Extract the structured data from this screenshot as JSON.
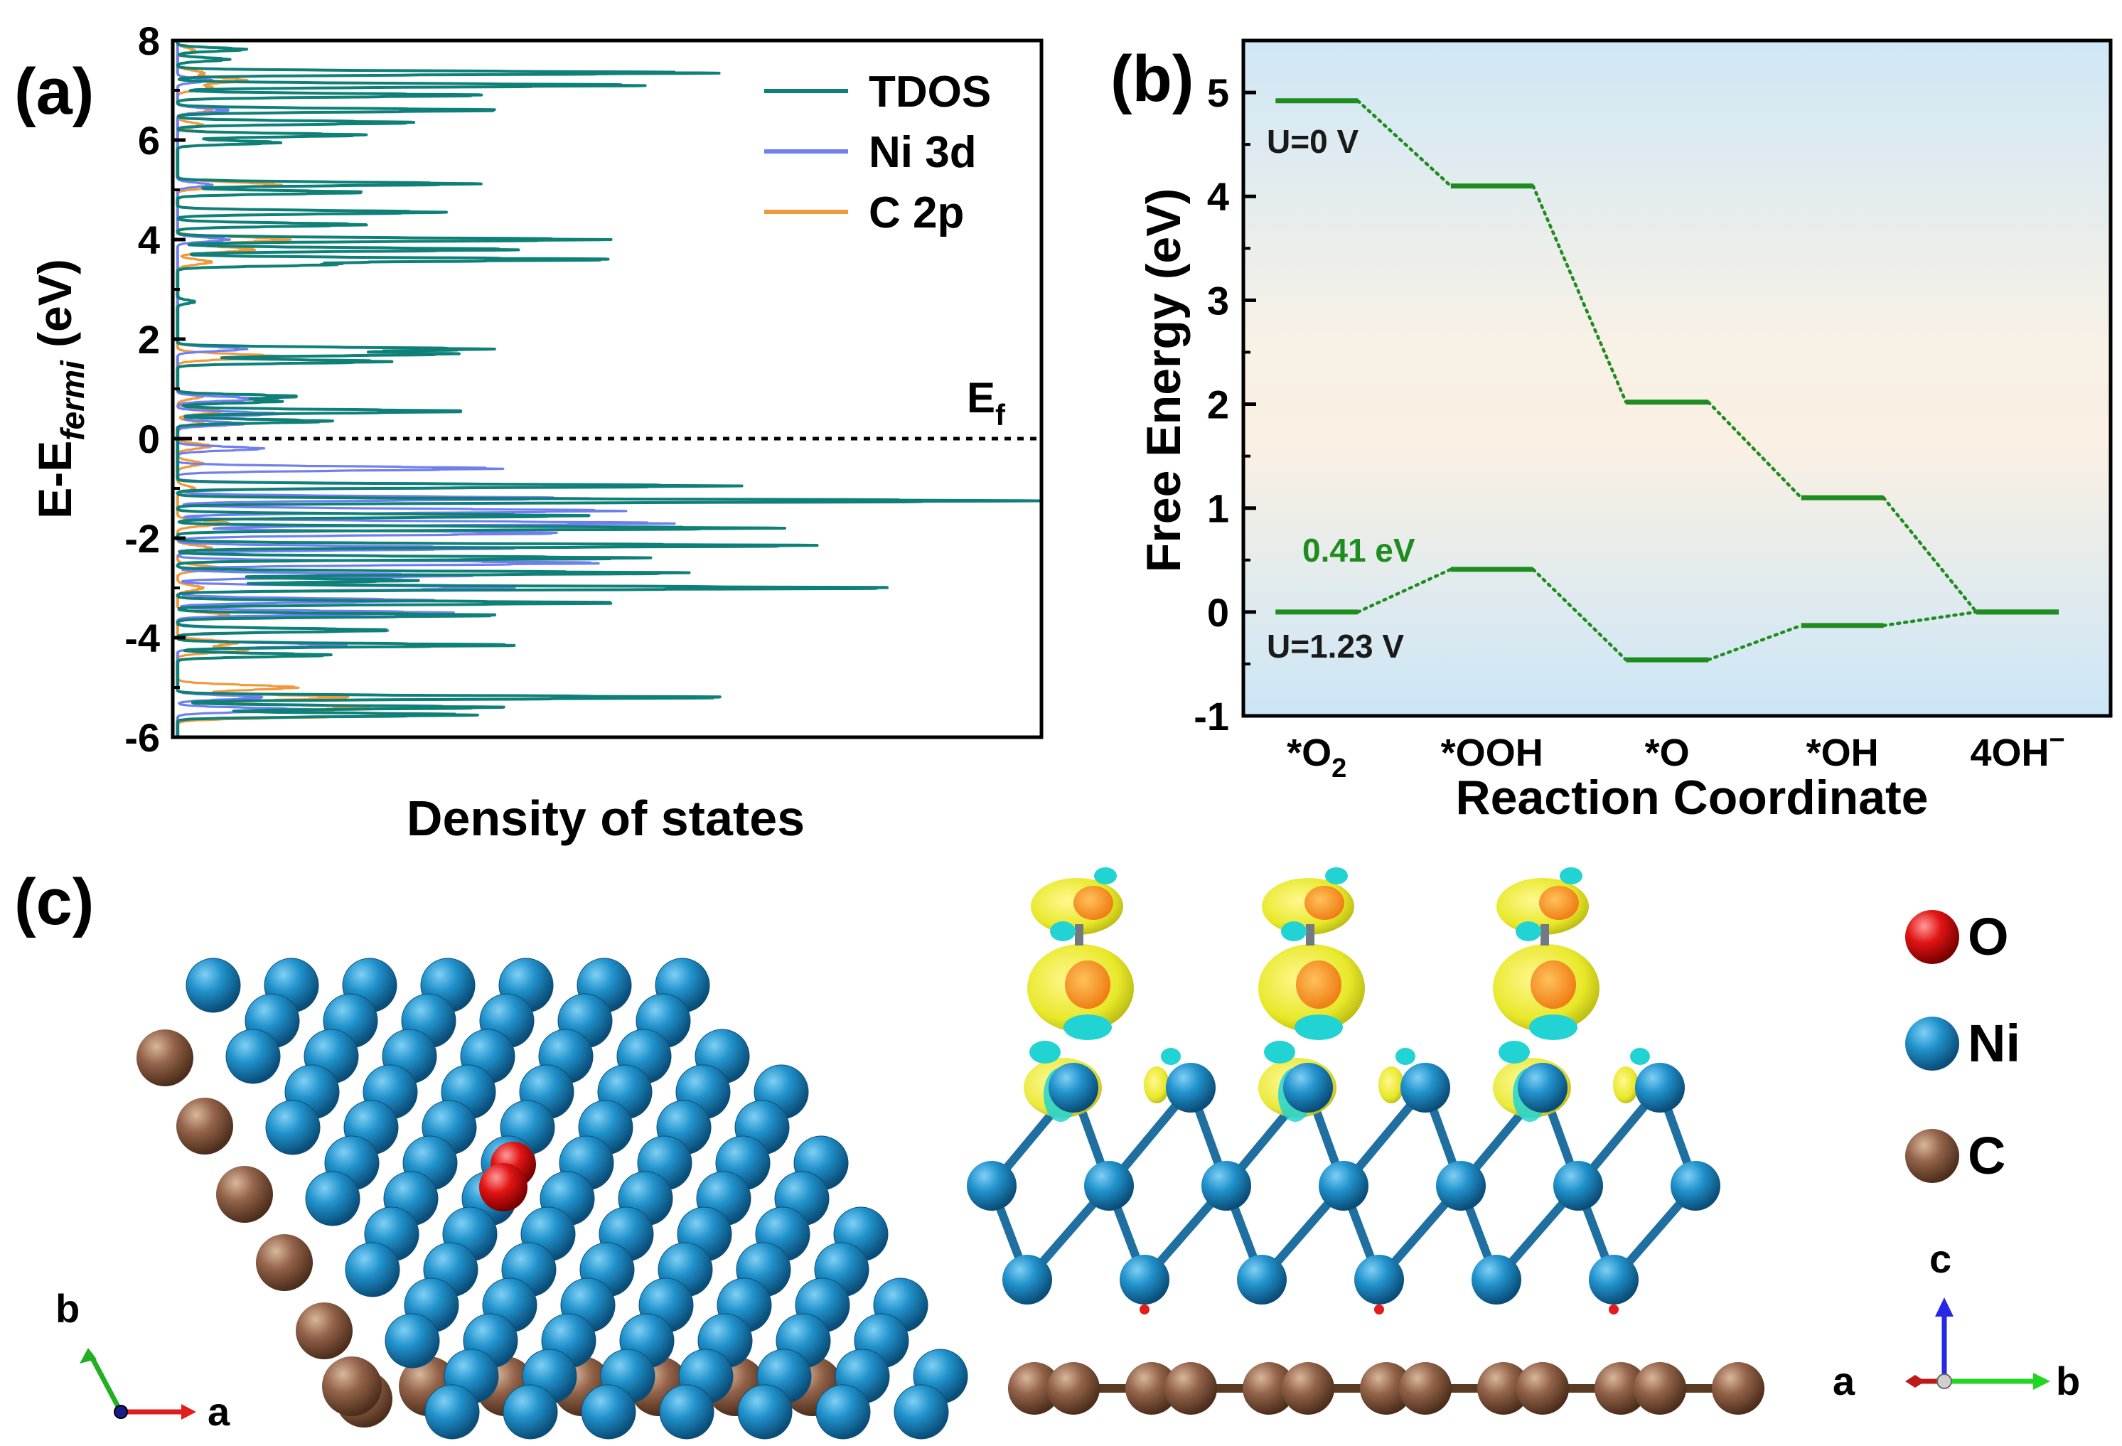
{
  "figure": {
    "panel_labels": [
      "(a)",
      "(b)",
      "(c)"
    ],
    "colors": {
      "tdos": "#0e8078",
      "ni3d": "#6f7ff0",
      "c2p": "#f2993a",
      "step": "#1e8c1e",
      "ni_atom": "#1f86c0",
      "c_atom": "#8a5a3c",
      "o_atom": "#e31b1b",
      "iso_yellow": "#eaea2a",
      "iso_cyan": "#22d3d3"
    }
  },
  "chart_data": [
    {
      "panel": "(a)",
      "type": "line",
      "title": "",
      "xlabel": "Density of states",
      "ylabel_main": "E-E",
      "ylabel_sub": "fermi",
      "ylabel_unit": " (eV)",
      "ylim": [
        -6,
        8
      ],
      "yticks": [
        "-6",
        "-4",
        "-2",
        "0",
        "2",
        "4",
        "6",
        "8"
      ],
      "yticks_values": [
        -6,
        -4,
        -2,
        0,
        2,
        4,
        6,
        8
      ],
      "xlim": [
        0,
        100
      ],
      "reference_line": {
        "y": 0,
        "label_main": "E",
        "label_sub": "f"
      },
      "legend": [
        "TDOS",
        "Ni 3d",
        "C 2p"
      ],
      "legend_position": "top-right",
      "series": [
        {
          "name": "TDOS",
          "peaks": [
            [
              7.82,
              8
            ],
            [
              7.62,
              6
            ],
            [
              7.35,
              63
            ],
            [
              7.1,
              55
            ],
            [
              6.9,
              36
            ],
            [
              6.6,
              38
            ],
            [
              6.35,
              28
            ],
            [
              6.1,
              22
            ],
            [
              5.95,
              12
            ],
            [
              5.12,
              35
            ],
            [
              4.95,
              22
            ],
            [
              4.55,
              31
            ],
            [
              4.3,
              22
            ],
            [
              4.0,
              50
            ],
            [
              3.8,
              40
            ],
            [
              3.6,
              51
            ],
            [
              3.5,
              18
            ],
            [
              2.75,
              2
            ],
            [
              1.8,
              36
            ],
            [
              1.7,
              32
            ],
            [
              1.55,
              25
            ],
            [
              0.85,
              14
            ],
            [
              0.75,
              12
            ],
            [
              0.55,
              34
            ],
            [
              0.35,
              18
            ],
            [
              -0.95,
              65
            ],
            [
              -1.25,
              100
            ],
            [
              -1.55,
              48
            ],
            [
              -1.8,
              70
            ],
            [
              -2.15,
              75
            ],
            [
              -2.4,
              55
            ],
            [
              -2.7,
              60
            ],
            [
              -2.85,
              28
            ],
            [
              -3.0,
              85
            ],
            [
              -3.3,
              52
            ],
            [
              -3.55,
              38
            ],
            [
              -3.85,
              25
            ],
            [
              -4.15,
              40
            ],
            [
              -4.35,
              18
            ],
            [
              -5.2,
              65
            ],
            [
              -5.4,
              38
            ],
            [
              -5.55,
              35
            ]
          ]
        },
        {
          "name": "Ni 3d",
          "peaks": [
            [
              7.2,
              4
            ],
            [
              6.6,
              6
            ],
            [
              5.1,
              4
            ],
            [
              4.0,
              6
            ],
            [
              1.8,
              8
            ],
            [
              0.8,
              10
            ],
            [
              0.5,
              12
            ],
            [
              0.3,
              8
            ],
            [
              -0.2,
              10
            ],
            [
              -0.6,
              38
            ],
            [
              -0.95,
              62
            ],
            [
              -1.2,
              48
            ],
            [
              -1.45,
              52
            ],
            [
              -1.7,
              58
            ],
            [
              -1.9,
              45
            ],
            [
              -2.2,
              40
            ],
            [
              -2.5,
              50
            ],
            [
              -2.75,
              35
            ],
            [
              -3.0,
              40
            ],
            [
              -3.25,
              30
            ],
            [
              -3.5,
              32
            ],
            [
              -3.85,
              25
            ],
            [
              -4.15,
              20
            ],
            [
              -5.2,
              10
            ],
            [
              -5.45,
              16
            ]
          ]
        },
        {
          "name": "C 2p",
          "peaks": [
            [
              7.8,
              2
            ],
            [
              7.35,
              3
            ],
            [
              7.2,
              8
            ],
            [
              7.05,
              4
            ],
            [
              6.6,
              4
            ],
            [
              6.3,
              3
            ],
            [
              5.1,
              12
            ],
            [
              4.0,
              13
            ],
            [
              3.8,
              9
            ],
            [
              3.55,
              4
            ],
            [
              1.65,
              12
            ],
            [
              0.85,
              3
            ],
            [
              0.55,
              5
            ],
            [
              0.3,
              3
            ],
            [
              -0.15,
              4
            ],
            [
              -0.5,
              3
            ],
            [
              -1.0,
              2
            ],
            [
              -1.7,
              6
            ],
            [
              -2.2,
              4
            ],
            [
              -2.6,
              5
            ],
            [
              -3.0,
              3
            ],
            [
              -3.55,
              6
            ],
            [
              -4.1,
              7
            ],
            [
              -4.25,
              8
            ],
            [
              -5.0,
              14
            ],
            [
              -5.2,
              20
            ],
            [
              -5.4,
              22
            ],
            [
              -5.55,
              28
            ]
          ]
        }
      ]
    },
    {
      "panel": "(b)",
      "type": "line",
      "title": "",
      "xlabel": "Reaction Coordinate",
      "ylabel": "Free Energy (eV)",
      "ylim": [
        -1,
        5.5
      ],
      "yticks": [
        "-1",
        "0",
        "1",
        "2",
        "3",
        "4",
        "5"
      ],
      "yticks_values": [
        -1,
        0,
        1,
        2,
        3,
        4,
        5
      ],
      "categories": [
        "*O2",
        "*OOH",
        "*O",
        "*OH",
        "4OH⁻"
      ],
      "category_labels": [
        {
          "main": "*O",
          "sub": "2",
          "sup": ""
        },
        {
          "main": "*OOH",
          "sub": "",
          "sup": ""
        },
        {
          "main": "*O",
          "sub": "",
          "sup": ""
        },
        {
          "main": "*OH",
          "sub": "",
          "sup": ""
        },
        {
          "main": "4OH",
          "sub": "",
          "sup": "−"
        }
      ],
      "series": [
        {
          "name": "U=0 V",
          "values": [
            4.92,
            4.1,
            2.02,
            1.1,
            0
          ]
        },
        {
          "name": "U=1.23 V",
          "values": [
            0,
            0.41,
            -0.46,
            -0.13,
            0
          ]
        }
      ],
      "annotations": [
        "U=0 V",
        "U=1.23 V",
        "0.41 eV"
      ]
    }
  ],
  "panel_c": {
    "legend": [
      {
        "symbol": "O",
        "label": "O"
      },
      {
        "symbol": "Ni",
        "label": "Ni"
      },
      {
        "symbol": "C",
        "label": "C"
      }
    ],
    "left_axes": {
      "up": "b",
      "right": "a"
    },
    "right_axes": {
      "up": "c",
      "left": "a",
      "right": "b"
    }
  }
}
